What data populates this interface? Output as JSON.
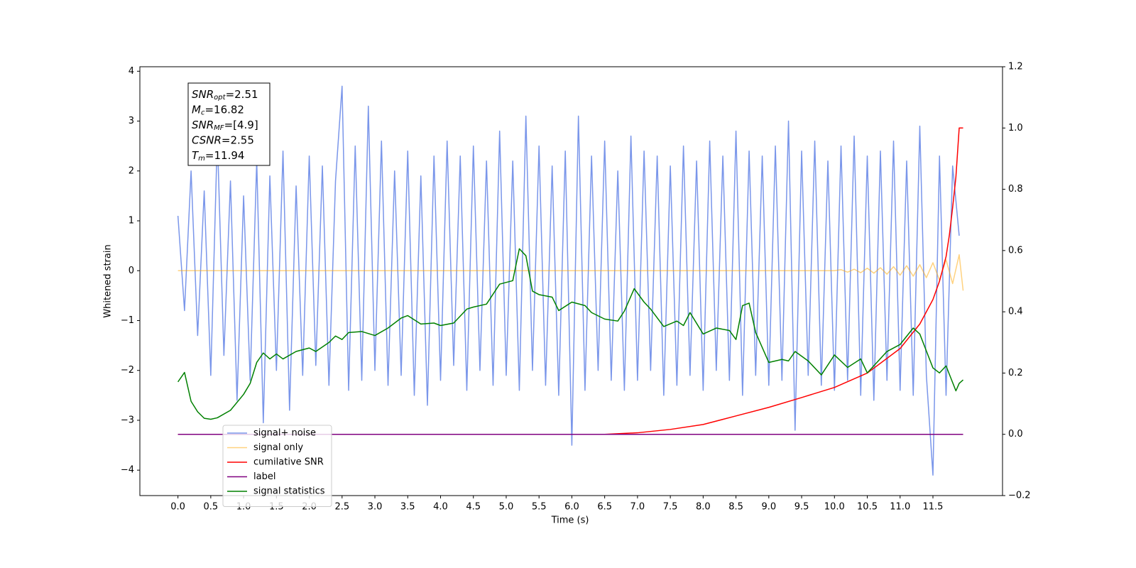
{
  "chart_data": {
    "type": "line",
    "xlabel": "Time (s)",
    "ylabel": "Whitened strain",
    "xlim": [
      -0.58,
      12.56
    ],
    "ylim": [
      -4.51,
      4.09
    ],
    "y2lim": [
      -0.2,
      1.2
    ],
    "grid": false,
    "legend": "lower left",
    "xticks": [
      {
        "value": 0,
        "label": "0.0"
      },
      0.5,
      {
        "value": 1,
        "label": "1.0"
      },
      1.5,
      {
        "value": 2,
        "label": "2.0"
      },
      2.5,
      {
        "value": 3,
        "label": "3.0"
      },
      3.5,
      {
        "value": 4,
        "label": "4.0"
      },
      4.5,
      {
        "value": 5,
        "label": "5.0"
      },
      5.5,
      {
        "value": 6,
        "label": "6.0"
      },
      6.5,
      {
        "value": 7,
        "label": "7.0"
      },
      7.5,
      {
        "value": 8,
        "label": "8.0"
      },
      8.5,
      {
        "value": 9,
        "label": "9.0"
      },
      9.5,
      {
        "value": 10,
        "label": "10.0"
      },
      10.5,
      {
        "value": 11,
        "label": "11.0"
      },
      11.5
    ],
    "yticks": [
      {
        "value": -4,
        "label": "−4"
      },
      {
        "value": -3,
        "label": "−3"
      },
      {
        "value": -2,
        "label": "−2"
      },
      {
        "value": -1,
        "label": "−1"
      },
      0,
      1,
      2,
      3,
      4
    ],
    "y2ticks": [
      {
        "value": -0.2,
        "label": "−0.2"
      },
      {
        "value": 0,
        "label": "0.0"
      },
      0.2,
      0.4,
      0.6,
      0.8,
      {
        "value": 1,
        "label": "1.0"
      },
      1.2
    ],
    "annotation": [
      {
        "main": "SNR",
        "sub": "opt",
        "rest": "=2.51"
      },
      {
        "main": "M",
        "sub": "c",
        "rest": "=16.82"
      },
      {
        "main": "SNR",
        "sub": "MF",
        "rest": "=[4.9]"
      },
      {
        "main": "CSNR",
        "rest": "=2.55"
      },
      {
        "main": "T",
        "sub": "m",
        "rest": "=11.94"
      }
    ],
    "series": [
      {
        "name": "signal+ noise",
        "color": "#4169e1",
        "x": [
          0.0,
          0.1,
          0.2,
          0.3,
          0.4,
          0.5,
          0.6,
          0.7,
          0.8,
          0.9,
          1.0,
          1.1,
          1.2,
          1.3,
          1.4,
          1.5,
          1.6,
          1.7,
          1.8,
          1.9,
          2.0,
          2.1,
          2.2,
          2.3,
          2.4,
          2.5,
          2.6,
          2.7,
          2.8,
          2.9,
          3.0,
          3.1,
          3.2,
          3.3,
          3.4,
          3.5,
          3.6,
          3.7,
          3.8,
          3.9,
          4.0,
          4.1,
          4.2,
          4.3,
          4.4,
          4.5,
          4.6,
          4.7,
          4.8,
          4.9,
          5.0,
          5.1,
          5.2,
          5.3,
          5.4,
          5.5,
          5.6,
          5.7,
          5.8,
          5.9,
          6.0,
          6.1,
          6.2,
          6.3,
          6.4,
          6.5,
          6.6,
          6.7,
          6.8,
          6.9,
          7.0,
          7.1,
          7.2,
          7.3,
          7.4,
          7.5,
          7.6,
          7.7,
          7.8,
          7.9,
          8.0,
          8.1,
          8.2,
          8.3,
          8.4,
          8.5,
          8.6,
          8.7,
          8.8,
          8.9,
          9.0,
          9.1,
          9.2,
          9.3,
          9.4,
          9.5,
          9.6,
          9.7,
          9.8,
          9.9,
          10.0,
          10.1,
          10.2,
          10.3,
          10.4,
          10.5,
          10.6,
          10.7,
          10.8,
          10.9,
          11.0,
          11.1,
          11.2,
          11.3,
          11.4,
          11.5,
          11.6,
          11.7,
          11.8,
          11.9
        ],
        "values": [
          1.1,
          -0.8,
          2.0,
          -1.3,
          1.6,
          -2.1,
          2.7,
          -1.7,
          1.8,
          -2.6,
          1.5,
          -2.2,
          2.2,
          -3.05,
          1.9,
          -2.0,
          2.4,
          -2.8,
          1.7,
          -2.1,
          2.3,
          -1.9,
          2.1,
          -2.3,
          1.8,
          3.7,
          -2.4,
          2.5,
          -2.2,
          3.3,
          -2.0,
          2.6,
          -2.3,
          2.0,
          -2.1,
          2.4,
          -2.5,
          1.9,
          -2.7,
          2.3,
          -2.2,
          2.6,
          -1.9,
          2.3,
          -2.4,
          2.5,
          -2.0,
          2.2,
          -2.3,
          2.8,
          -2.1,
          2.2,
          -2.4,
          3.1,
          -2.0,
          2.5,
          -2.3,
          2.1,
          -2.5,
          2.4,
          -3.5,
          3.1,
          -2.4,
          2.3,
          -2.0,
          2.6,
          -2.2,
          2.0,
          -2.4,
          2.7,
          -2.2,
          2.4,
          -2.0,
          2.3,
          -2.5,
          2.1,
          -2.3,
          2.5,
          -2.1,
          2.2,
          -2.4,
          2.6,
          -2.0,
          2.3,
          -2.2,
          2.8,
          -2.5,
          2.4,
          -2.1,
          2.3,
          -2.3,
          2.5,
          -2.2,
          3.0,
          -3.2,
          2.4,
          -2.1,
          2.6,
          -2.3,
          2.2,
          -2.4,
          2.5,
          -2.2,
          2.7,
          -2.5,
          2.3,
          -2.6,
          2.4,
          -2.2,
          2.6,
          -2.4,
          2.2,
          -2.5,
          2.9,
          -2.1,
          -4.1,
          2.3,
          -2.5,
          2.1,
          0.7
        ]
      },
      {
        "name": "signal only",
        "color": "#ffa500",
        "x": [
          0.0,
          10.0,
          10.1,
          10.2,
          10.3,
          10.4,
          10.5,
          10.6,
          10.7,
          10.8,
          10.9,
          11.0,
          11.1,
          11.2,
          11.3,
          11.4,
          11.5,
          11.6,
          11.7,
          11.8,
          11.9,
          11.96
        ],
        "values": [
          0,
          0,
          0.02,
          -0.03,
          0.03,
          -0.04,
          0.05,
          -0.05,
          0.06,
          -0.07,
          0.08,
          -0.09,
          0.1,
          -0.11,
          0.12,
          -0.14,
          0.16,
          -0.19,
          0.22,
          -0.26,
          0.32,
          -0.4
        ]
      },
      {
        "name": "cumilative SNR",
        "color": "#ff0000",
        "axis": "y2",
        "x": [
          0.0,
          6.5,
          7.0,
          7.5,
          8.0,
          8.5,
          9.0,
          9.5,
          10.0,
          10.5,
          11.0,
          11.3,
          11.5,
          11.6,
          11.7,
          11.75,
          11.8,
          11.85,
          11.9,
          11.96
        ],
        "values": [
          0,
          0,
          0.005,
          0.016,
          0.032,
          0.06,
          0.088,
          0.12,
          0.153,
          0.2,
          0.28,
          0.36,
          0.44,
          0.5,
          0.58,
          0.65,
          0.74,
          0.84,
          1.0,
          1.0
        ]
      },
      {
        "name": "label",
        "color": "#800080",
        "axis": "y2",
        "x": [
          0.0,
          11.96
        ],
        "values": [
          0,
          0
        ]
      },
      {
        "name": "signal statistics",
        "color": "#008000",
        "x": [
          0.0,
          0.1,
          0.2,
          0.3,
          0.4,
          0.5,
          0.6,
          0.8,
          1.0,
          1.1,
          1.2,
          1.3,
          1.4,
          1.5,
          1.6,
          1.8,
          2.0,
          2.1,
          2.3,
          2.4,
          2.5,
          2.6,
          2.8,
          3.0,
          3.2,
          3.4,
          3.5,
          3.7,
          3.9,
          4.0,
          4.2,
          4.4,
          4.5,
          4.7,
          4.9,
          5.1,
          5.2,
          5.3,
          5.4,
          5.5,
          5.7,
          5.8,
          6.0,
          6.2,
          6.3,
          6.5,
          6.7,
          6.8,
          6.95,
          7.1,
          7.2,
          7.4,
          7.6,
          7.7,
          7.8,
          8.0,
          8.2,
          8.4,
          8.5,
          8.6,
          8.7,
          8.8,
          9.0,
          9.2,
          9.3,
          9.4,
          9.6,
          9.8,
          10.0,
          10.2,
          10.4,
          10.5,
          10.8,
          11.0,
          11.2,
          11.3,
          11.5,
          11.6,
          11.7,
          11.85,
          11.9,
          11.96
        ],
        "values": [
          -2.23,
          -2.04,
          -2.62,
          -2.83,
          -2.96,
          -2.98,
          -2.95,
          -2.8,
          -2.48,
          -2.26,
          -1.84,
          -1.65,
          -1.77,
          -1.67,
          -1.77,
          -1.62,
          -1.55,
          -1.62,
          -1.44,
          -1.31,
          -1.38,
          -1.24,
          -1.22,
          -1.3,
          -1.15,
          -0.95,
          -0.9,
          -1.07,
          -1.05,
          -1.1,
          -1.05,
          -0.77,
          -0.73,
          -0.67,
          -0.27,
          -0.2,
          0.44,
          0.3,
          -0.41,
          -0.48,
          -0.53,
          -0.8,
          -0.63,
          -0.7,
          -0.84,
          -0.97,
          -1.01,
          -0.81,
          -0.36,
          -0.63,
          -0.77,
          -1.12,
          -1.01,
          -1.1,
          -0.84,
          -1.27,
          -1.15,
          -1.2,
          -1.38,
          -0.7,
          -0.65,
          -1.24,
          -1.84,
          -1.78,
          -1.81,
          -1.62,
          -1.81,
          -2.09,
          -1.69,
          -1.94,
          -1.77,
          -2.05,
          -1.62,
          -1.48,
          -1.15,
          -1.27,
          -1.95,
          -2.05,
          -1.91,
          -2.41,
          -2.26,
          -2.19
        ]
      }
    ]
  }
}
